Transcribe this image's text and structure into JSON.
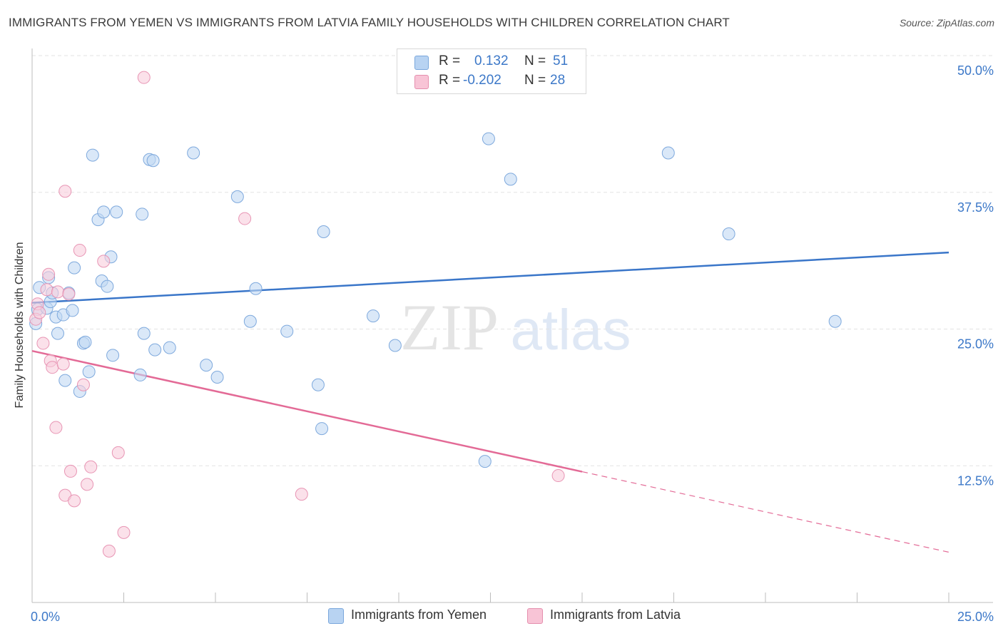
{
  "title": "IMMIGRANTS FROM YEMEN VS IMMIGRANTS FROM LATVIA FAMILY HOUSEHOLDS WITH CHILDREN CORRELATION CHART",
  "source": "Source: ZipAtlas.com",
  "watermark": {
    "zip": "ZIP",
    "atlas": "atlas"
  },
  "legend": {
    "r_label": "R =",
    "n_label": "N =",
    "rows": [
      {
        "name": "Immigrants from Yemen",
        "r": "0.132",
        "n": "51",
        "fill": "#b8d3f2",
        "stroke": "#7aa7dc"
      },
      {
        "name": "Immigrants from Latvia",
        "r": "-0.202",
        "n": "28",
        "fill": "#f8c4d6",
        "stroke": "#e58fae"
      }
    ]
  },
  "chart_data": {
    "type": "scatter",
    "xlabel": "",
    "ylabel": "Family Households with Children",
    "xlim": [
      0,
      25
    ],
    "ylim": [
      0,
      50
    ],
    "x_tick_labels": [
      {
        "value": 0,
        "label": "0.0%"
      },
      {
        "value": 25,
        "label": "25.0%"
      }
    ],
    "y_tick_labels": [
      {
        "value": 12.5,
        "label": "12.5%"
      },
      {
        "value": 25,
        "label": "25.0%"
      },
      {
        "value": 37.5,
        "label": "37.5%"
      },
      {
        "value": 50,
        "label": "50.0%"
      }
    ],
    "x_minor_ticks": [
      2.5,
      5,
      7.5,
      10,
      12.5,
      15,
      17.5,
      20,
      22.5
    ],
    "colors": {
      "yemen": "#3a76c9",
      "latvia": "#e36a96",
      "grid": "#e3e3e3",
      "tick_label": "#3c78c8"
    },
    "series": [
      {
        "name": "Immigrants from Yemen",
        "color": "#3a76c9",
        "trend": {
          "x0": 0,
          "y0": 27.4,
          "x1": 25,
          "y1": 32.0,
          "dashed_from": null
        },
        "points": [
          [
            0.15,
            26.8
          ],
          [
            0.2,
            28.8
          ],
          [
            0.4,
            26.9
          ],
          [
            0.45,
            29.7
          ],
          [
            0.5,
            27.5
          ],
          [
            0.55,
            28.3
          ],
          [
            0.65,
            26.1
          ],
          [
            0.7,
            24.6
          ],
          [
            0.85,
            26.3
          ],
          [
            0.9,
            20.3
          ],
          [
            1.0,
            28.3
          ],
          [
            1.1,
            26.7
          ],
          [
            1.15,
            30.6
          ],
          [
            1.3,
            19.3
          ],
          [
            1.4,
            23.7
          ],
          [
            1.45,
            23.8
          ],
          [
            1.55,
            21.1
          ],
          [
            1.65,
            40.9
          ],
          [
            1.8,
            35.0
          ],
          [
            1.9,
            29.4
          ],
          [
            1.95,
            35.7
          ],
          [
            2.05,
            28.9
          ],
          [
            2.15,
            31.6
          ],
          [
            2.2,
            22.6
          ],
          [
            2.3,
            35.7
          ],
          [
            2.95,
            20.8
          ],
          [
            3.0,
            35.5
          ],
          [
            3.05,
            24.6
          ],
          [
            3.2,
            40.5
          ],
          [
            3.3,
            40.4
          ],
          [
            3.35,
            23.1
          ],
          [
            3.75,
            23.3
          ],
          [
            4.4,
            41.1
          ],
          [
            4.75,
            21.7
          ],
          [
            5.05,
            20.6
          ],
          [
            5.6,
            37.1
          ],
          [
            5.95,
            25.7
          ],
          [
            6.1,
            28.7
          ],
          [
            6.95,
            24.8
          ],
          [
            7.8,
            19.9
          ],
          [
            7.9,
            15.9
          ],
          [
            7.95,
            33.9
          ],
          [
            9.3,
            26.2
          ],
          [
            9.9,
            23.5
          ],
          [
            12.35,
            12.9
          ],
          [
            12.45,
            42.4
          ],
          [
            13.05,
            38.7
          ],
          [
            17.35,
            41.1
          ],
          [
            19.0,
            33.7
          ],
          [
            21.9,
            25.7
          ],
          [
            0.1,
            25.5
          ]
        ]
      },
      {
        "name": "Immigrants from Latvia",
        "color": "#e36a96",
        "trend": {
          "x0": 0,
          "y0": 23.0,
          "x1": 25,
          "y1": 4.6,
          "dashed_from": 15.0
        },
        "points": [
          [
            0.1,
            25.9
          ],
          [
            0.15,
            27.3
          ],
          [
            0.2,
            26.5
          ],
          [
            0.3,
            23.7
          ],
          [
            0.4,
            28.6
          ],
          [
            0.45,
            30.0
          ],
          [
            0.5,
            22.1
          ],
          [
            0.55,
            21.5
          ],
          [
            0.65,
            16.0
          ],
          [
            0.7,
            28.4
          ],
          [
            0.85,
            21.8
          ],
          [
            0.9,
            37.6
          ],
          [
            0.9,
            9.8
          ],
          [
            1.0,
            28.2
          ],
          [
            1.05,
            12.0
          ],
          [
            1.15,
            9.3
          ],
          [
            1.3,
            32.2
          ],
          [
            1.4,
            19.9
          ],
          [
            1.5,
            10.8
          ],
          [
            1.6,
            12.4
          ],
          [
            1.95,
            31.2
          ],
          [
            2.1,
            4.7
          ],
          [
            2.35,
            13.7
          ],
          [
            2.5,
            6.4
          ],
          [
            3.05,
            48.0
          ],
          [
            5.8,
            35.1
          ],
          [
            7.35,
            9.9
          ],
          [
            14.35,
            11.6
          ]
        ]
      }
    ]
  }
}
